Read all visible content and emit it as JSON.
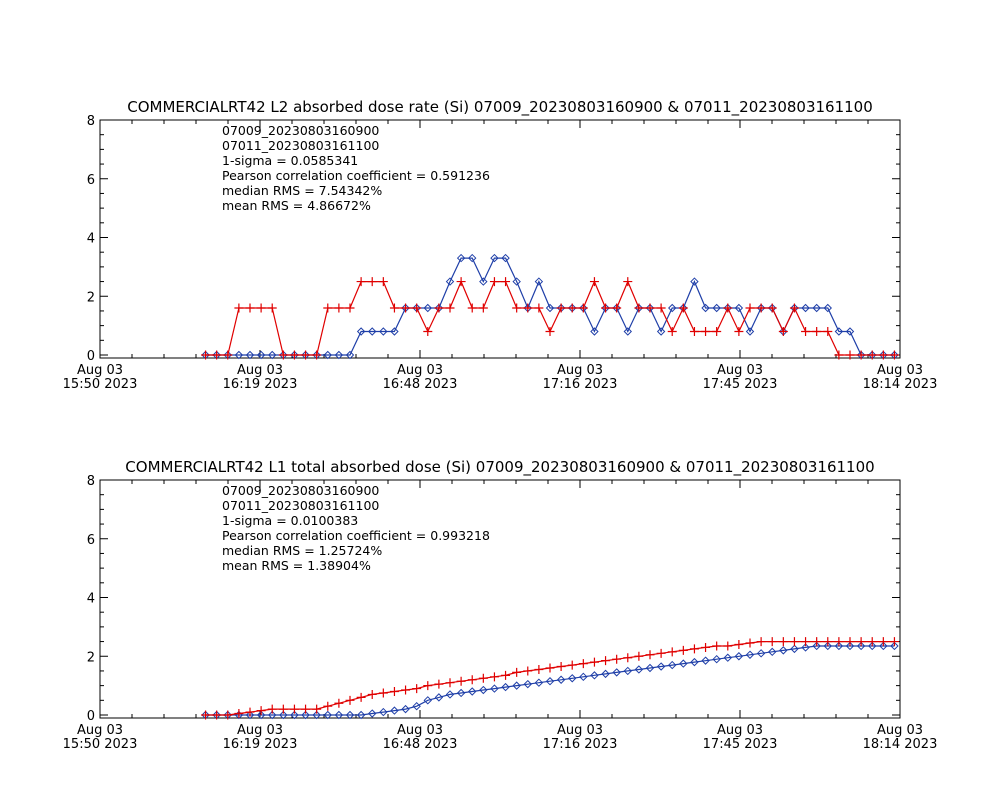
{
  "charts": [
    {
      "title": "COMMERCIALRT42 L2 absorbed dose rate (Si) 07009_20230803160900 & 07011_20230803161100",
      "stats": {
        "series_a_label": "07009_20230803160900",
        "series_b_label": "07011_20230803161100",
        "sigma": "1-sigma = 0.0585341",
        "pearson": "Pearson correlation coefficient = 0.591236",
        "median_rms": "median RMS = 7.54342%",
        "mean_rms": "mean RMS = 4.86672%"
      }
    },
    {
      "title": "COMMERCIALRT42 L1 total absorbed dose (Si) 07009_20230803160900 & 07011_20230803161100",
      "stats": {
        "series_a_label": "07009_20230803160900",
        "series_b_label": "07011_20230803161100",
        "sigma": "1-sigma = 0.0100383",
        "pearson": "Pearson correlation coefficient = 0.993218",
        "median_rms": "median RMS = 1.25724%",
        "mean_rms": "mean RMS = 1.38904%"
      }
    }
  ],
  "colors": {
    "series_a": "#1f3fa8",
    "series_b": "#e00000",
    "axis": "#000000"
  },
  "chart_data": [
    {
      "type": "line",
      "title": "COMMERCIALRT42 L2 absorbed dose rate (Si) 07009_20230803160900 & 07011_20230803161100",
      "x_range_minutes": [
        0,
        144
      ],
      "x_tick_labels": [
        [
          "Aug 03",
          "15:50 2023"
        ],
        [
          "Aug 03",
          "16:19 2023"
        ],
        [
          "Aug 03",
          "16:48 2023"
        ],
        [
          "Aug 03",
          "17:16 2023"
        ],
        [
          "Aug 03",
          "17:45 2023"
        ],
        [
          "Aug 03",
          "18:14 2023"
        ]
      ],
      "ylim": [
        0,
        8
      ],
      "y_ticks": [
        0,
        2,
        4,
        6,
        8
      ],
      "series": [
        {
          "name": "07009_20230803160900",
          "marker": "diamond",
          "x": [
            19,
            21,
            23,
            25,
            27,
            29,
            31,
            33,
            35,
            37,
            39,
            41,
            43,
            45,
            47,
            49,
            51,
            53,
            55,
            57,
            59,
            61,
            63,
            65,
            67,
            69,
            71,
            73,
            75,
            77,
            79,
            81,
            83,
            85,
            87,
            89,
            91,
            93,
            95,
            97,
            99,
            101,
            103,
            105,
            107,
            109,
            111,
            113,
            115,
            117,
            119,
            121,
            123,
            125,
            127,
            129,
            131,
            133,
            135,
            137,
            139,
            141,
            143
          ],
          "y": [
            0,
            0,
            0,
            0,
            0,
            0,
            0,
            0,
            0,
            0,
            0,
            0,
            0,
            0,
            0.8,
            0.8,
            0.8,
            0.8,
            1.6,
            1.6,
            1.6,
            1.6,
            2.5,
            3.3,
            3.3,
            2.5,
            3.3,
            3.3,
            2.5,
            1.6,
            2.5,
            1.6,
            1.6,
            1.6,
            1.6,
            0.8,
            1.6,
            1.6,
            0.8,
            1.6,
            1.6,
            0.8,
            1.6,
            1.6,
            2.5,
            1.6,
            1.6,
            1.6,
            1.6,
            0.8,
            1.6,
            1.6,
            0.8,
            1.6,
            1.6,
            1.6,
            1.6,
            0.8,
            0.8,
            0,
            0,
            0,
            0
          ]
        },
        {
          "name": "07011_20230803161100",
          "marker": "plus",
          "x": [
            19,
            21,
            23,
            25,
            27,
            29,
            31,
            33,
            35,
            37,
            39,
            41,
            43,
            45,
            47,
            49,
            51,
            53,
            55,
            57,
            59,
            61,
            63,
            65,
            67,
            69,
            71,
            73,
            75,
            77,
            79,
            81,
            83,
            85,
            87,
            89,
            91,
            93,
            95,
            97,
            99,
            101,
            103,
            105,
            107,
            109,
            111,
            113,
            115,
            117,
            119,
            121,
            123,
            125,
            127,
            129,
            131,
            133,
            135,
            137,
            139,
            141,
            143
          ],
          "y": [
            0,
            0,
            0,
            1.6,
            1.6,
            1.6,
            1.6,
            0,
            0,
            0,
            0,
            1.6,
            1.6,
            1.6,
            2.5,
            2.5,
            2.5,
            1.6,
            1.6,
            1.6,
            0.8,
            1.6,
            1.6,
            2.5,
            1.6,
            1.6,
            2.5,
            2.5,
            1.6,
            1.6,
            1.6,
            0.8,
            1.6,
            1.6,
            1.6,
            2.5,
            1.6,
            1.6,
            2.5,
            1.6,
            1.6,
            1.6,
            0.8,
            1.6,
            0.8,
            0.8,
            0.8,
            1.6,
            0.8,
            1.6,
            1.6,
            1.6,
            0.8,
            1.6,
            0.8,
            0.8,
            0.8,
            0,
            0,
            0,
            0,
            0,
            0
          ]
        }
      ]
    },
    {
      "type": "line",
      "title": "COMMERCIALRT42 L1 total absorbed dose (Si) 07009_20230803160900 & 07011_20230803161100",
      "x_range_minutes": [
        0,
        144
      ],
      "x_tick_labels": [
        [
          "Aug 03",
          "15:50 2023"
        ],
        [
          "Aug 03",
          "16:19 2023"
        ],
        [
          "Aug 03",
          "16:48 2023"
        ],
        [
          "Aug 03",
          "17:16 2023"
        ],
        [
          "Aug 03",
          "17:45 2023"
        ],
        [
          "Aug 03",
          "18:14 2023"
        ]
      ],
      "ylim": [
        0,
        8
      ],
      "y_ticks": [
        0,
        2,
        4,
        6,
        8
      ],
      "series": [
        {
          "name": "07009_20230803160900",
          "marker": "diamond",
          "x": [
            19,
            21,
            23,
            25,
            27,
            29,
            31,
            33,
            35,
            37,
            39,
            41,
            43,
            45,
            47,
            49,
            51,
            53,
            55,
            57,
            59,
            61,
            63,
            65,
            67,
            69,
            71,
            73,
            75,
            77,
            79,
            81,
            83,
            85,
            87,
            89,
            91,
            93,
            95,
            97,
            99,
            101,
            103,
            105,
            107,
            109,
            111,
            113,
            115,
            117,
            119,
            121,
            123,
            125,
            127,
            129,
            131,
            133,
            135,
            137,
            139,
            141,
            143
          ],
          "y": [
            0,
            0,
            0,
            0,
            0,
            0,
            0,
            0,
            0,
            0,
            0,
            0,
            0,
            0,
            0,
            0.05,
            0.1,
            0.15,
            0.2,
            0.3,
            0.5,
            0.6,
            0.7,
            0.75,
            0.8,
            0.85,
            0.9,
            0.95,
            1.0,
            1.05,
            1.1,
            1.15,
            1.2,
            1.25,
            1.3,
            1.35,
            1.4,
            1.45,
            1.5,
            1.55,
            1.6,
            1.65,
            1.7,
            1.75,
            1.8,
            1.85,
            1.9,
            1.95,
            2.0,
            2.05,
            2.1,
            2.15,
            2.2,
            2.25,
            2.3,
            2.35,
            2.35,
            2.35,
            2.35,
            2.35,
            2.35,
            2.35,
            2.35
          ]
        },
        {
          "name": "07011_20230803161100",
          "marker": "plus",
          "x": [
            19,
            21,
            23,
            25,
            27,
            29,
            31,
            33,
            35,
            37,
            39,
            41,
            43,
            45,
            47,
            49,
            51,
            53,
            55,
            57,
            59,
            61,
            63,
            65,
            67,
            69,
            71,
            73,
            75,
            77,
            79,
            81,
            83,
            85,
            87,
            89,
            91,
            93,
            95,
            97,
            99,
            101,
            103,
            105,
            107,
            109,
            111,
            113,
            115,
            117,
            119,
            121,
            123,
            125,
            127,
            129,
            131,
            133,
            135,
            137,
            139,
            141,
            143
          ],
          "y": [
            0,
            0,
            0,
            0.05,
            0.1,
            0.15,
            0.2,
            0.2,
            0.2,
            0.2,
            0.2,
            0.3,
            0.4,
            0.5,
            0.6,
            0.7,
            0.75,
            0.8,
            0.85,
            0.9,
            1.0,
            1.05,
            1.1,
            1.15,
            1.2,
            1.25,
            1.3,
            1.35,
            1.45,
            1.5,
            1.55,
            1.6,
            1.65,
            1.7,
            1.75,
            1.8,
            1.85,
            1.9,
            1.95,
            2.0,
            2.05,
            2.1,
            2.15,
            2.2,
            2.25,
            2.3,
            2.35,
            2.35,
            2.4,
            2.45,
            2.5,
            2.5,
            2.5,
            2.5,
            2.5,
            2.5,
            2.5,
            2.5,
            2.5,
            2.5,
            2.5,
            2.5,
            2.5
          ]
        }
      ]
    }
  ]
}
